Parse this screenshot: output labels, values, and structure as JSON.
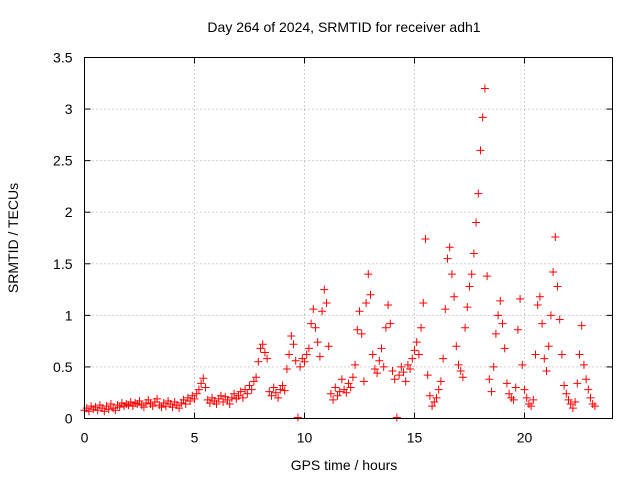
{
  "chart_data": {
    "type": "scatter",
    "title": "Day 264 of 2024, SRMTID for receiver adh1",
    "xlabel": "GPS time / hours",
    "ylabel": "SRMTID / TECUs",
    "xlim": [
      0,
      24
    ],
    "ylim": [
      0,
      3.5
    ],
    "xticks": [
      0,
      5,
      10,
      15,
      20
    ],
    "xtick_labels": [
      "0",
      "5",
      "10",
      "15",
      "20"
    ],
    "yticks": [
      0,
      0.5,
      1,
      1.5,
      2,
      2.5,
      3,
      3.5
    ],
    "ytick_labels": [
      "0",
      "0.5",
      "1",
      "1.5",
      "2",
      "2.5",
      "3",
      "3.5"
    ],
    "grid": true,
    "marker": "+",
    "color": "#ff0000",
    "series": [
      {
        "name": "adh1",
        "points": [
          [
            0.0,
            0.08
          ],
          [
            0.1,
            0.1
          ],
          [
            0.2,
            0.07
          ],
          [
            0.3,
            0.12
          ],
          [
            0.4,
            0.09
          ],
          [
            0.5,
            0.11
          ],
          [
            0.6,
            0.08
          ],
          [
            0.7,
            0.13
          ],
          [
            0.8,
            0.1
          ],
          [
            0.9,
            0.07
          ],
          [
            1.0,
            0.12
          ],
          [
            1.1,
            0.09
          ],
          [
            1.2,
            0.14
          ],
          [
            1.3,
            0.1
          ],
          [
            1.4,
            0.08
          ],
          [
            1.5,
            0.13
          ],
          [
            1.6,
            0.11
          ],
          [
            1.7,
            0.15
          ],
          [
            1.8,
            0.12
          ],
          [
            1.9,
            0.14
          ],
          [
            2.0,
            0.13
          ],
          [
            2.1,
            0.16
          ],
          [
            2.2,
            0.12
          ],
          [
            2.3,
            0.15
          ],
          [
            2.4,
            0.14
          ],
          [
            2.5,
            0.17
          ],
          [
            2.6,
            0.13
          ],
          [
            2.7,
            0.11
          ],
          [
            2.8,
            0.15
          ],
          [
            2.9,
            0.18
          ],
          [
            3.0,
            0.14
          ],
          [
            3.1,
            0.12
          ],
          [
            3.2,
            0.16
          ],
          [
            3.3,
            0.19
          ],
          [
            3.4,
            0.13
          ],
          [
            3.5,
            0.11
          ],
          [
            3.6,
            0.15
          ],
          [
            3.7,
            0.12
          ],
          [
            3.8,
            0.17
          ],
          [
            3.9,
            0.14
          ],
          [
            4.0,
            0.11
          ],
          [
            4.1,
            0.16
          ],
          [
            4.2,
            0.13
          ],
          [
            4.3,
            0.1
          ],
          [
            4.4,
            0.15
          ],
          [
            4.5,
            0.18
          ],
          [
            4.6,
            0.14
          ],
          [
            4.7,
            0.2
          ],
          [
            4.8,
            0.17
          ],
          [
            4.9,
            0.22
          ],
          [
            5.0,
            0.19
          ],
          [
            5.1,
            0.24
          ],
          [
            5.2,
            0.28
          ],
          [
            5.3,
            0.34
          ],
          [
            5.4,
            0.39
          ],
          [
            5.5,
            0.3
          ],
          [
            5.6,
            0.18
          ],
          [
            5.7,
            0.15
          ],
          [
            5.8,
            0.2
          ],
          [
            5.9,
            0.17
          ],
          [
            6.0,
            0.14
          ],
          [
            6.1,
            0.19
          ],
          [
            6.2,
            0.22
          ],
          [
            6.3,
            0.16
          ],
          [
            6.4,
            0.21
          ],
          [
            6.5,
            0.18
          ],
          [
            6.6,
            0.14
          ],
          [
            6.7,
            0.2
          ],
          [
            6.8,
            0.24
          ],
          [
            6.9,
            0.19
          ],
          [
            7.0,
            0.22
          ],
          [
            7.1,
            0.26
          ],
          [
            7.2,
            0.2
          ],
          [
            7.3,
            0.28
          ],
          [
            7.4,
            0.24
          ],
          [
            7.5,
            0.32
          ],
          [
            7.6,
            0.28
          ],
          [
            7.7,
            0.36
          ],
          [
            7.8,
            0.4
          ],
          [
            7.9,
            0.55
          ],
          [
            8.0,
            0.68
          ],
          [
            8.1,
            0.72
          ],
          [
            8.2,
            0.64
          ],
          [
            8.3,
            0.58
          ],
          [
            8.4,
            0.26
          ],
          [
            8.5,
            0.22
          ],
          [
            8.6,
            0.3
          ],
          [
            8.7,
            0.25
          ],
          [
            8.8,
            0.2
          ],
          [
            8.9,
            0.28
          ],
          [
            9.0,
            0.32
          ],
          [
            9.1,
            0.27
          ],
          [
            9.2,
            0.48
          ],
          [
            9.3,
            0.62
          ],
          [
            9.4,
            0.8
          ],
          [
            9.5,
            0.72
          ],
          [
            9.6,
            0.56
          ],
          [
            9.7,
            0.01
          ],
          [
            9.8,
            0.5
          ],
          [
            9.9,
            0.58
          ],
          [
            10.0,
            0.55
          ],
          [
            10.1,
            0.62
          ],
          [
            10.2,
            0.68
          ],
          [
            10.3,
            0.92
          ],
          [
            10.4,
            1.06
          ],
          [
            10.5,
            0.88
          ],
          [
            10.6,
            0.74
          ],
          [
            10.7,
            0.6
          ],
          [
            10.8,
            1.04
          ],
          [
            10.9,
            1.25
          ],
          [
            11.0,
            1.12
          ],
          [
            11.1,
            0.7
          ],
          [
            11.2,
            0.24
          ],
          [
            11.3,
            0.18
          ],
          [
            11.4,
            0.3
          ],
          [
            11.5,
            0.22
          ],
          [
            11.6,
            0.26
          ],
          [
            11.7,
            0.38
          ],
          [
            11.8,
            0.28
          ],
          [
            11.9,
            0.25
          ],
          [
            12.0,
            0.34
          ],
          [
            12.1,
            0.3
          ],
          [
            12.2,
            0.4
          ],
          [
            12.3,
            0.52
          ],
          [
            12.4,
            0.86
          ],
          [
            12.5,
            1.04
          ],
          [
            12.6,
            0.82
          ],
          [
            12.7,
            0.36
          ],
          [
            12.8,
            1.12
          ],
          [
            12.9,
            1.4
          ],
          [
            13.0,
            1.2
          ],
          [
            13.1,
            0.62
          ],
          [
            13.2,
            0.48
          ],
          [
            13.3,
            0.44
          ],
          [
            13.4,
            0.56
          ],
          [
            13.5,
            0.68
          ],
          [
            13.6,
            0.5
          ],
          [
            13.7,
            0.88
          ],
          [
            13.8,
            1.1
          ],
          [
            13.9,
            0.92
          ],
          [
            14.0,
            0.46
          ],
          [
            14.1,
            0.38
          ],
          [
            14.2,
            0.01
          ],
          [
            14.3,
            0.42
          ],
          [
            14.4,
            0.5
          ],
          [
            14.5,
            0.45
          ],
          [
            14.6,
            0.36
          ],
          [
            14.7,
            0.52
          ],
          [
            14.8,
            0.48
          ],
          [
            14.9,
            0.58
          ],
          [
            15.0,
            0.66
          ],
          [
            15.1,
            0.74
          ],
          [
            15.2,
            0.62
          ],
          [
            15.3,
            0.88
          ],
          [
            15.4,
            1.12
          ],
          [
            15.5,
            1.74
          ],
          [
            15.6,
            0.42
          ],
          [
            15.7,
            0.22
          ],
          [
            15.8,
            0.12
          ],
          [
            15.9,
            0.16
          ],
          [
            16.0,
            0.2
          ],
          [
            16.1,
            0.28
          ],
          [
            16.2,
            0.36
          ],
          [
            16.3,
            0.58
          ],
          [
            16.4,
            1.06
          ],
          [
            16.5,
            1.55
          ],
          [
            16.6,
            1.66
          ],
          [
            16.7,
            1.4
          ],
          [
            16.8,
            1.18
          ],
          [
            16.9,
            0.7
          ],
          [
            17.0,
            0.52
          ],
          [
            17.1,
            0.46
          ],
          [
            17.2,
            0.4
          ],
          [
            17.3,
            0.88
          ],
          [
            17.4,
            1.08
          ],
          [
            17.5,
            1.28
          ],
          [
            17.6,
            1.4
          ],
          [
            17.7,
            1.6
          ],
          [
            17.8,
            1.9
          ],
          [
            17.9,
            2.18
          ],
          [
            18.0,
            2.6
          ],
          [
            18.1,
            2.92
          ],
          [
            18.2,
            3.2
          ],
          [
            18.3,
            1.38
          ],
          [
            18.4,
            0.38
          ],
          [
            18.5,
            0.26
          ],
          [
            18.6,
            0.5
          ],
          [
            18.7,
            0.82
          ],
          [
            18.8,
            1.0
          ],
          [
            18.9,
            1.14
          ],
          [
            19.0,
            0.92
          ],
          [
            19.1,
            0.68
          ],
          [
            19.2,
            0.34
          ],
          [
            19.3,
            0.24
          ],
          [
            19.4,
            0.2
          ],
          [
            19.5,
            0.18
          ],
          [
            19.6,
            0.3
          ],
          [
            19.7,
            0.86
          ],
          [
            19.8,
            1.16
          ],
          [
            19.9,
            0.52
          ],
          [
            20.0,
            0.28
          ],
          [
            20.1,
            0.2
          ],
          [
            20.2,
            0.14
          ],
          [
            20.3,
            0.12
          ],
          [
            20.4,
            0.18
          ],
          [
            20.5,
            0.62
          ],
          [
            20.6,
            1.1
          ],
          [
            20.7,
            1.18
          ],
          [
            20.8,
            0.92
          ],
          [
            20.9,
            0.58
          ],
          [
            21.0,
            0.46
          ],
          [
            21.1,
            0.7
          ],
          [
            21.2,
            1.0
          ],
          [
            21.3,
            1.42
          ],
          [
            21.4,
            1.76
          ],
          [
            21.5,
            1.28
          ],
          [
            21.6,
            0.96
          ],
          [
            21.7,
            0.62
          ],
          [
            21.8,
            0.32
          ],
          [
            21.9,
            0.24
          ],
          [
            22.0,
            0.18
          ],
          [
            22.1,
            0.14
          ],
          [
            22.2,
            0.1
          ],
          [
            22.3,
            0.16
          ],
          [
            22.4,
            0.34
          ],
          [
            22.5,
            0.62
          ],
          [
            22.6,
            0.9
          ],
          [
            22.7,
            0.52
          ],
          [
            22.8,
            0.38
          ],
          [
            22.9,
            0.28
          ],
          [
            23.0,
            0.2
          ],
          [
            23.1,
            0.14
          ],
          [
            23.2,
            0.12
          ]
        ]
      }
    ]
  }
}
